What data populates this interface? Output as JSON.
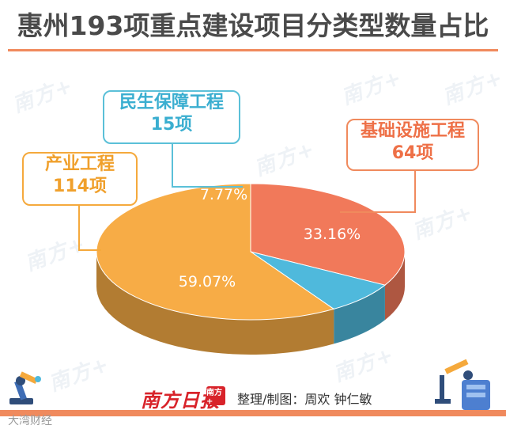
{
  "header": {
    "title": "惠州193项重点建设项目分类型数量占比"
  },
  "callouts": {
    "infrastructure": {
      "name": "基础设施工程",
      "count": "64项"
    },
    "livelihood": {
      "name": "民生保障工程",
      "count": "15项"
    },
    "industry": {
      "name": "产业工程",
      "count": "114项"
    }
  },
  "watermark_text": "南方+",
  "footer": {
    "brand": "南方日报",
    "badge": "南方+",
    "credit": "整理/制图：周欢  钟仁敏",
    "corner_mark": "大湾财经"
  },
  "colors": {
    "infrastructure": "#f1795a",
    "livelihood": "#4fb9dc",
    "industry": "#f7ac46",
    "accent": "#f08a5d"
  },
  "chart_data": {
    "type": "pie",
    "title": "惠州193项重点建设项目分类型数量占比",
    "slices": [
      {
        "label": "基础设施工程",
        "count": 64,
        "percent": 33.16,
        "percent_label": "33.16%"
      },
      {
        "label": "民生保障工程",
        "count": 15,
        "percent": 7.77,
        "percent_label": "7.77%"
      },
      {
        "label": "产业工程",
        "count": 114,
        "percent": 59.07,
        "percent_label": "59.07%"
      }
    ],
    "style": "3d-tilted",
    "legend": "callouts"
  }
}
